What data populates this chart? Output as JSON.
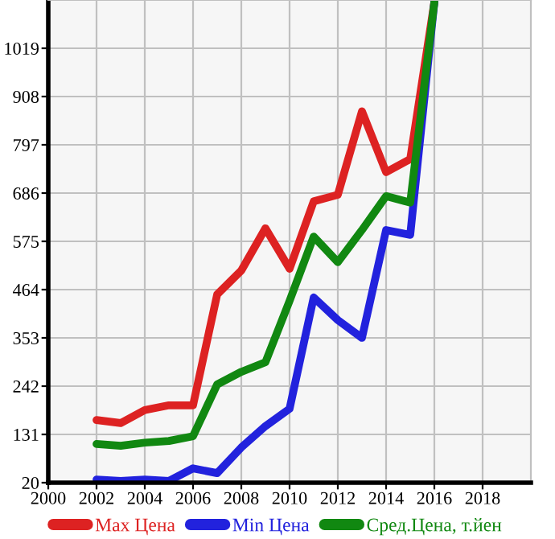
{
  "chart_data": {
    "type": "line",
    "x": [
      2002,
      2003,
      2004,
      2005,
      2006,
      2007,
      2008,
      2009,
      2010,
      2011,
      2012,
      2013,
      2014,
      2015,
      2016
    ],
    "series": [
      {
        "name": "Max Цена",
        "color": "#dd2222",
        "values": [
          164,
          157,
          187,
          198,
          198,
          453,
          508,
          605,
          512,
          667,
          682,
          874,
          734,
          764,
          1125
        ]
      },
      {
        "name": "Min Цена",
        "color": "#2222dd",
        "values": [
          27,
          24,
          27,
          24,
          53,
          42,
          101,
          150,
          190,
          446,
          394,
          353,
          601,
          590,
          1125
        ]
      },
      {
        "name": "Сред.Цена, т.йен",
        "color": "#118811",
        "values": [
          109,
          105,
          112,
          116,
          127,
          246,
          275,
          297,
          438,
          586,
          527,
          601,
          679,
          664,
          1125
        ]
      }
    ],
    "xlim": [
      2000,
      2020
    ],
    "xticks": [
      2000,
      2002,
      2004,
      2006,
      2008,
      2010,
      2012,
      2014,
      2016,
      2018
    ],
    "ylim": [
      20,
      1130
    ],
    "yticks": [
      20,
      131,
      242,
      353,
      464,
      575,
      686,
      797,
      908,
      1019
    ],
    "grid": true,
    "legend": "bottom",
    "marker": "none",
    "line_style": "solid"
  }
}
